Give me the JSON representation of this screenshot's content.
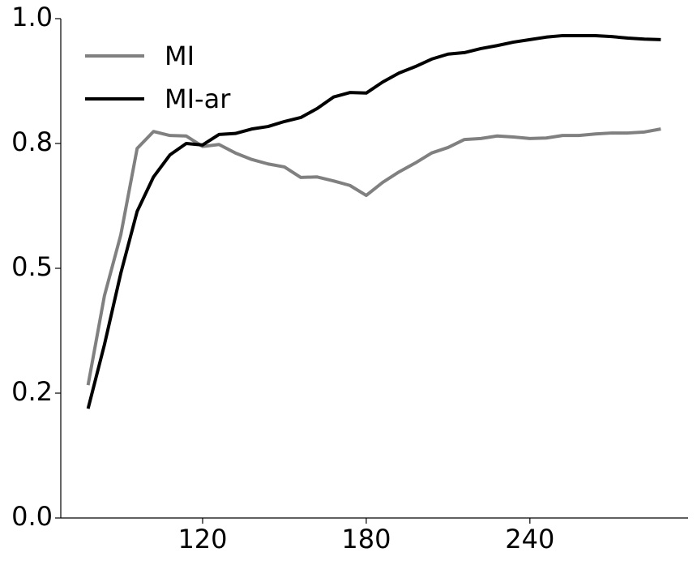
{
  "chart_data": {
    "type": "line",
    "x": [
      78,
      84,
      90,
      96,
      102,
      108,
      114,
      120,
      126,
      132,
      138,
      144,
      150,
      156,
      162,
      168,
      174,
      180,
      186,
      192,
      198,
      204,
      210,
      216,
      222,
      228,
      234,
      240,
      246,
      252,
      258,
      264,
      270,
      276,
      282,
      288
    ],
    "series": [
      {
        "name": "MI",
        "color": "#808080",
        "values": [
          0.266,
          0.445,
          0.567,
          0.74,
          0.774,
          0.766,
          0.765,
          0.744,
          0.748,
          0.731,
          0.718,
          0.709,
          0.703,
          0.682,
          0.683,
          0.675,
          0.666,
          0.646,
          0.672,
          0.693,
          0.711,
          0.731,
          0.742,
          0.758,
          0.76,
          0.765,
          0.763,
          0.76,
          0.761,
          0.766,
          0.766,
          0.769,
          0.771,
          0.771,
          0.773,
          0.779
        ]
      },
      {
        "name": "MI-ar",
        "color": "#000000",
        "values": [
          0.219,
          0.347,
          0.49,
          0.614,
          0.683,
          0.727,
          0.75,
          0.747,
          0.768,
          0.77,
          0.779,
          0.784,
          0.794,
          0.802,
          0.82,
          0.843,
          0.852,
          0.851,
          0.873,
          0.891,
          0.904,
          0.919,
          0.929,
          0.932,
          0.94,
          0.946,
          0.953,
          0.958,
          0.963,
          0.966,
          0.966,
          0.966,
          0.964,
          0.961,
          0.959,
          0.958
        ]
      }
    ],
    "xlim": [
      68,
      298
    ],
    "xticks": [
      120,
      180,
      240
    ],
    "ylim": [
      0,
      1
    ],
    "yticks": [
      {
        "value": 0,
        "label": "0.0"
      },
      {
        "value": 0.25,
        "label": "0.2"
      },
      {
        "value": 0.5,
        "label": "0.5"
      },
      {
        "value": 0.75,
        "label": "0.8"
      },
      {
        "value": 1,
        "label": "1.0"
      }
    ],
    "legend": "upper-left",
    "grid": false
  }
}
